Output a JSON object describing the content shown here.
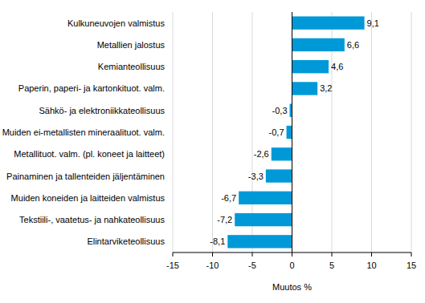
{
  "chart_data": {
    "type": "bar",
    "orientation": "horizontal",
    "categories": [
      "Kulkuneuvojen valmistus",
      "Metallien jalostus",
      "Kemianteollisuus",
      "Paperin, paperi- ja kartonkituot. valm.",
      "Sähkö- ja elektroniikkateollisuus",
      "Muiden ei-metallisten mineraalituot. valm.",
      "Metallituot. valm. (pl. koneet ja laitteet)",
      "Painaminen ja tallenteiden jäljentäminen",
      "Muiden koneiden ja laitteiden valmistus",
      "Tekstiili-, vaatetus- ja nahkateollisuus",
      "Elintarviketeollisuus"
    ],
    "values": [
      9.1,
      6.6,
      4.6,
      3.2,
      -0.3,
      -0.7,
      -2.6,
      -3.3,
      -6.7,
      -7.2,
      -8.1
    ],
    "value_labels": [
      "9,1",
      "6,6",
      "4,6",
      "3,2",
      "-0,3",
      "-0,7",
      "-2,6",
      "-3,3",
      "-6,7",
      "-7,2",
      "-8,1"
    ],
    "data_labels": true,
    "color": "#0099d8",
    "xlim": [
      -15,
      15
    ],
    "xticks": [
      -15,
      -10,
      -5,
      0,
      5,
      10,
      15
    ],
    "xlabel": "Muutos %",
    "grid": true
  }
}
